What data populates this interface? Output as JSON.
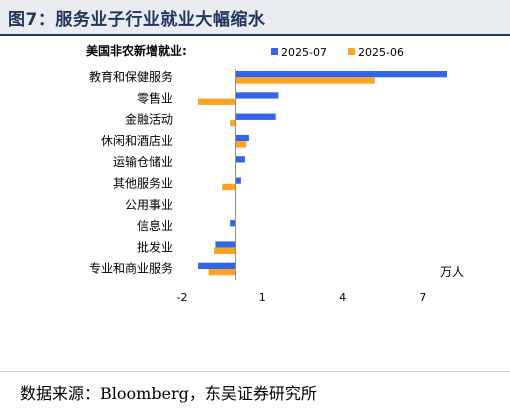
{
  "figure": {
    "title": "图7：服务业子行业就业大幅缩水",
    "source": "数据来源：Bloomberg，东吴证券研究所"
  },
  "chart_data": {
    "type": "bar",
    "orientation": "horizontal",
    "title": "美国非农新增就业:",
    "unit_label": "万人",
    "categories": [
      "教育和保健服务",
      "零售业",
      "金融活动",
      "休闲和酒店业",
      "运输仓储业",
      "其他服务业",
      "公用事业",
      "信息业",
      "批发业",
      "专业和商业服务"
    ],
    "series": [
      {
        "name": "2025-07",
        "color": "#3366e6",
        "values": [
          7.9,
          1.6,
          1.5,
          0.5,
          0.35,
          0.2,
          0.0,
          -0.2,
          -0.75,
          -1.4
        ]
      },
      {
        "name": "2025-06",
        "color": "#ffa21f",
        "values": [
          5.2,
          -1.4,
          -0.2,
          0.4,
          0.0,
          -0.5,
          0.0,
          0.0,
          -0.8,
          -1.0
        ]
      }
    ],
    "x_ticks": [
      "-2",
      "1",
      "4",
      "7"
    ],
    "xlim": [
      -2,
      7.9
    ],
    "grid": false,
    "legend_position": "top"
  }
}
